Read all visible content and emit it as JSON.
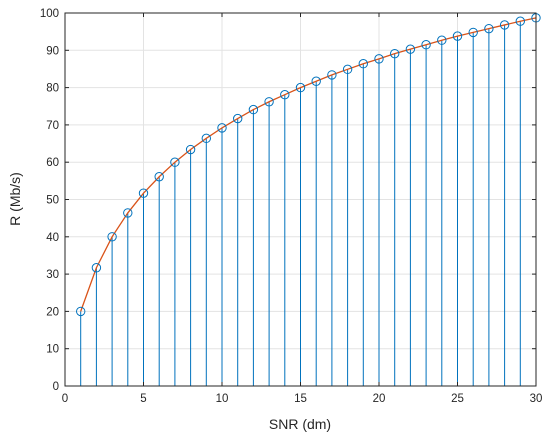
{
  "chart_data": {
    "type": "stem",
    "xlabel": "SNR (dm)",
    "ylabel": "R (Mb/s)",
    "xlim": [
      0,
      30
    ],
    "ylim": [
      0,
      100
    ],
    "xticks": [
      0,
      5,
      10,
      15,
      20,
      25,
      30
    ],
    "yticks": [
      0,
      10,
      20,
      30,
      40,
      50,
      60,
      70,
      80,
      90,
      100
    ],
    "grid": true,
    "x": [
      1,
      2,
      3,
      4,
      5,
      6,
      7,
      8,
      9,
      10,
      11,
      12,
      13,
      14,
      15,
      16,
      17,
      18,
      19,
      20,
      21,
      22,
      23,
      24,
      25,
      26,
      27,
      28,
      29,
      30
    ],
    "y": [
      20.0,
      31.7,
      40.0,
      46.4,
      51.7,
      56.1,
      60.0,
      63.4,
      66.4,
      69.2,
      71.7,
      74.1,
      76.2,
      78.1,
      80.0,
      81.7,
      83.4,
      84.9,
      86.4,
      87.7,
      89.1,
      90.3,
      91.5,
      92.7,
      93.8,
      94.8,
      95.8,
      96.8,
      97.8,
      98.7
    ],
    "colors": {
      "stem": "#0072BD",
      "line": "#D95319",
      "marker": "#0072BD",
      "grid": "#e3e3e3",
      "axis": "#262626"
    }
  }
}
